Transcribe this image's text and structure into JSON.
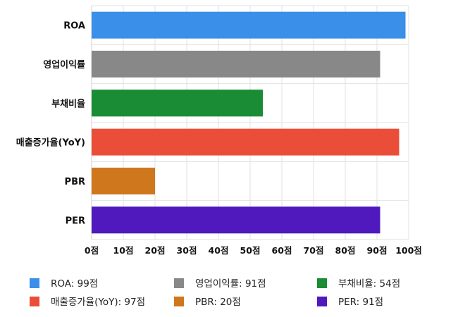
{
  "chart_data": {
    "type": "bar",
    "orientation": "horizontal",
    "categories": [
      "ROA",
      "영업이익률",
      "부채비율",
      "매출증가율(YoY)",
      "PBR",
      "PER"
    ],
    "values": [
      99,
      91,
      54,
      97,
      20,
      91
    ],
    "colors": [
      "#3a8fe8",
      "#888888",
      "#1a8c35",
      "#ea4e39",
      "#cf771c",
      "#4f19bd"
    ],
    "xlim": [
      0,
      100
    ],
    "x_ticks": [
      "0점",
      "10점",
      "20점",
      "30점",
      "40점",
      "50점",
      "60점",
      "70점",
      "80점",
      "90점",
      "100점"
    ],
    "grid": true,
    "legend_position": "bottom",
    "legend": [
      "ROA: 99점",
      "영업이익률: 91점",
      "부채비율: 54점",
      "매출증가율(YoY): 97점",
      "PBR: 20점",
      "PER: 91점"
    ]
  }
}
